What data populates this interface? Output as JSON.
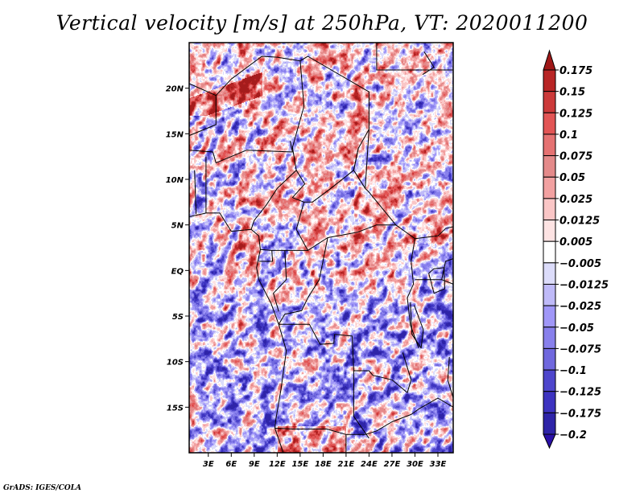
{
  "title": "Vertical velocity [m/s] at 250hPa, VT: 2020011200",
  "footer": "GrADS: IGES/COLA",
  "map": {
    "variable": "Vertical velocity",
    "units": "m/s",
    "level": "250hPa",
    "valid_time": "2020011200",
    "lon_range": [
      0.5,
      35
    ],
    "lat_range": [
      -20,
      25
    ],
    "lat_ticks": [
      {
        "value": 20,
        "label": "20N"
      },
      {
        "value": 15,
        "label": "15N"
      },
      {
        "value": 10,
        "label": "10N"
      },
      {
        "value": 5,
        "label": "5N"
      },
      {
        "value": 0,
        "label": "EQ"
      },
      {
        "value": -5,
        "label": "5S"
      },
      {
        "value": -10,
        "label": "10S"
      },
      {
        "value": -15,
        "label": "15S"
      }
    ],
    "lon_ticks": [
      {
        "value": 3,
        "label": "3E"
      },
      {
        "value": 6,
        "label": "6E"
      },
      {
        "value": 9,
        "label": "9E"
      },
      {
        "value": 12,
        "label": "12E"
      },
      {
        "value": 15,
        "label": "15E"
      },
      {
        "value": 18,
        "label": "18E"
      },
      {
        "value": 21,
        "label": "21E"
      },
      {
        "value": 24,
        "label": "24E"
      },
      {
        "value": 27,
        "label": "27E"
      },
      {
        "value": 30,
        "label": "30E"
      },
      {
        "value": 33,
        "label": "33E"
      }
    ]
  },
  "colorbar": {
    "levels": [
      {
        "label": "0.175",
        "color": "#a51c1c"
      },
      {
        "label": "0.15",
        "color": "#b82525"
      },
      {
        "label": "0.125",
        "color": "#cc3a3a"
      },
      {
        "label": "0.1",
        "color": "#e25555"
      },
      {
        "label": "0.075",
        "color": "#e57272"
      },
      {
        "label": "0.05",
        "color": "#e48a8a"
      },
      {
        "label": "0.025",
        "color": "#f2a1a1"
      },
      {
        "label": "0.0125",
        "color": "#fac6c6"
      },
      {
        "label": "0.005",
        "color": "#fde3e3"
      },
      {
        "label": "-0.005",
        "color": "#ffffff"
      },
      {
        "label": "-0.0125",
        "color": "#dcdcfa"
      },
      {
        "label": "-0.025",
        "color": "#bfbaf8"
      },
      {
        "label": "-0.05",
        "color": "#a097f8"
      },
      {
        "label": "-0.075",
        "color": "#8880ec"
      },
      {
        "label": "-0.1",
        "color": "#7068de"
      },
      {
        "label": "-0.125",
        "color": "#4e46cc"
      },
      {
        "label": "-0.175",
        "color": "#3d33c0"
      },
      {
        "label": "-0.2",
        "color": "#2e24a8"
      }
    ],
    "top_arrow_color": "#a01818",
    "bottom_arrow_color": "#2a10a8"
  }
}
